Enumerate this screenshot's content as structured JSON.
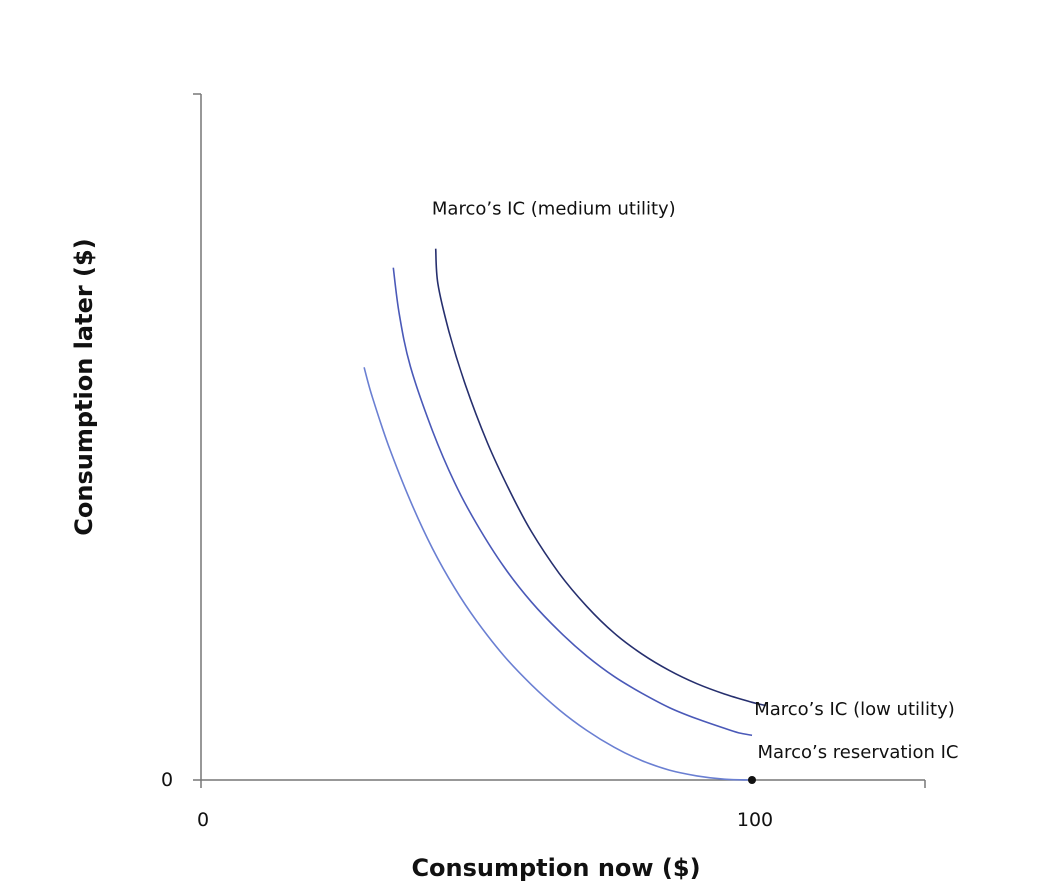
{
  "chart_data": {
    "type": "line",
    "title": "",
    "xlabel": "Consumption now ($)",
    "ylabel": "Consumption later ($)",
    "x_ticks": [
      "0",
      "100"
    ],
    "y_ticks": [
      "0"
    ],
    "xlim": [
      0,
      131
    ],
    "ylim": [
      0,
      165
    ],
    "series": [
      {
        "name": "Marco’s reservation IC",
        "color": "#6a7fd2",
        "points": [
          [
            29.6,
            99.8
          ],
          [
            31,
            93
          ],
          [
            34,
            81
          ],
          [
            38,
            67.5
          ],
          [
            42,
            56
          ],
          [
            46,
            46.5
          ],
          [
            50,
            38.5
          ],
          [
            55,
            30
          ],
          [
            60,
            23
          ],
          [
            65,
            17
          ],
          [
            70,
            12
          ],
          [
            75,
            7.9
          ],
          [
            80,
            4.7
          ],
          [
            85,
            2.4
          ],
          [
            90,
            1
          ],
          [
            95,
            0.2
          ],
          [
            100,
            0
          ]
        ]
      },
      {
        "name": "Marco’s IC (low utility)",
        "color": "#4a59b8",
        "points": [
          [
            34.9,
            123.9
          ],
          [
            36,
            112.5
          ],
          [
            38,
            100
          ],
          [
            42,
            84.5
          ],
          [
            46,
            72
          ],
          [
            50,
            62
          ],
          [
            55,
            51.5
          ],
          [
            60,
            43
          ],
          [
            65,
            36
          ],
          [
            70,
            30
          ],
          [
            75,
            25
          ],
          [
            80,
            21
          ],
          [
            85,
            17.5
          ],
          [
            90,
            14.8
          ],
          [
            95,
            12.5
          ],
          [
            100,
            10.8
          ],
          [
            97.6,
            11.4
          ]
        ]
      },
      {
        "name": "Marco’s IC (medium utility)",
        "color": "#262f6e",
        "points": [
          [
            42.6,
            128.5
          ],
          [
            43,
            120
          ],
          [
            45,
            108.5
          ],
          [
            48,
            95.5
          ],
          [
            52,
            81.5
          ],
          [
            56,
            70
          ],
          [
            60,
            60
          ],
          [
            65,
            50
          ],
          [
            70,
            42
          ],
          [
            75,
            35.5
          ],
          [
            80,
            30.5
          ],
          [
            85,
            26.5
          ],
          [
            90,
            23.3
          ],
          [
            95,
            20.8
          ],
          [
            100,
            18.8
          ],
          [
            102.5,
            18
          ]
        ]
      }
    ],
    "annotations": [
      {
        "text": "Marco’s IC (medium utility)",
        "series": 2,
        "x": 41.9,
        "y": 136.8
      },
      {
        "text": "Marco’s IC (low utility)",
        "series": 1,
        "x": 100.4,
        "y": 15.7
      },
      {
        "text": "Marco’s reservation IC",
        "series": 0,
        "x": 101.0,
        "y": 5.3
      }
    ],
    "highlight_point": {
      "x": 100,
      "y": 0
    }
  }
}
